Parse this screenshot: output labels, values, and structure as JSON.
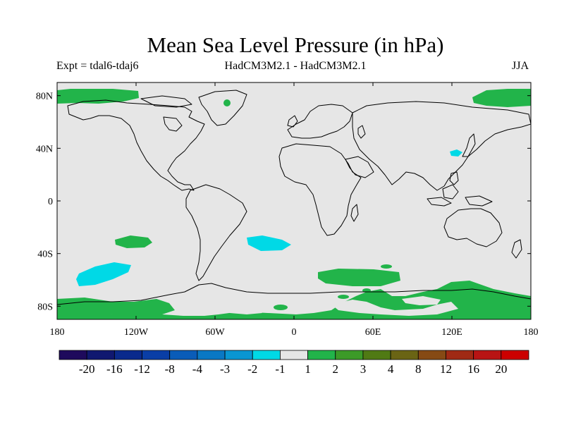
{
  "title": "Mean Sea Level Pressure (in hPa)",
  "expt_label": "Expt = tdal6-tdaj6",
  "model_label": "HadCM3M2.1 - HadCM3M2.1",
  "season_label": "JJA",
  "map": {
    "projection": "cylindrical-equidistant",
    "lon_range": [
      -180,
      180
    ],
    "lat_range": [
      -90,
      90
    ],
    "background_color": "#e6e6e6",
    "coastline_color": "#000000",
    "lat_ticks": [
      "80N",
      "40N",
      "0",
      "40S",
      "80S"
    ],
    "lat_tick_values": [
      80,
      40,
      0,
      -40,
      -80
    ],
    "lon_ticks": [
      "180",
      "120W",
      "60W",
      "0",
      "60E",
      "120E",
      "180"
    ],
    "lon_tick_values": [
      -180,
      -120,
      -60,
      0,
      60,
      120,
      180
    ]
  },
  "anomaly_regions": [
    {
      "name": "arctic-west",
      "level": "1 to 2",
      "color": "#22b44a"
    },
    {
      "name": "arctic-east",
      "level": "1 to 2",
      "color": "#22b44a"
    },
    {
      "name": "greenland-spot",
      "level": "1 to 2",
      "color": "#22b44a"
    },
    {
      "name": "south-pacific-small",
      "level": "1 to 2",
      "color": "#22b44a"
    },
    {
      "name": "south-atlantic-negative",
      "level": "-2 to -1",
      "color": "#00d9e6"
    },
    {
      "name": "south-pacific-negative",
      "level": "-2 to -1",
      "color": "#00d9e6"
    },
    {
      "name": "korea-negative",
      "level": "-2 to -1",
      "color": "#00d9e6"
    },
    {
      "name": "southern-ocean-indian",
      "level": "1 to 2",
      "color": "#22b44a"
    },
    {
      "name": "antarctic-band",
      "level": "1 to 2",
      "color": "#22b44a"
    }
  ],
  "colorbar": {
    "labels": [
      "-20",
      "-16",
      "-12",
      "-8",
      "-4",
      "-3",
      "-2",
      "-1",
      "1",
      "2",
      "3",
      "4",
      "8",
      "12",
      "16",
      "20"
    ],
    "colors": [
      "#1e0a5c",
      "#101870",
      "#0a2a8c",
      "#0a3ea6",
      "#0a5cb8",
      "#0a78c4",
      "#0a96d2",
      "#00d9e6",
      "#e6e6e6",
      "#22b44a",
      "#3c9a28",
      "#507a14",
      "#6a6414",
      "#864a14",
      "#a02a14",
      "#b81414",
      "#cc0000"
    ]
  }
}
